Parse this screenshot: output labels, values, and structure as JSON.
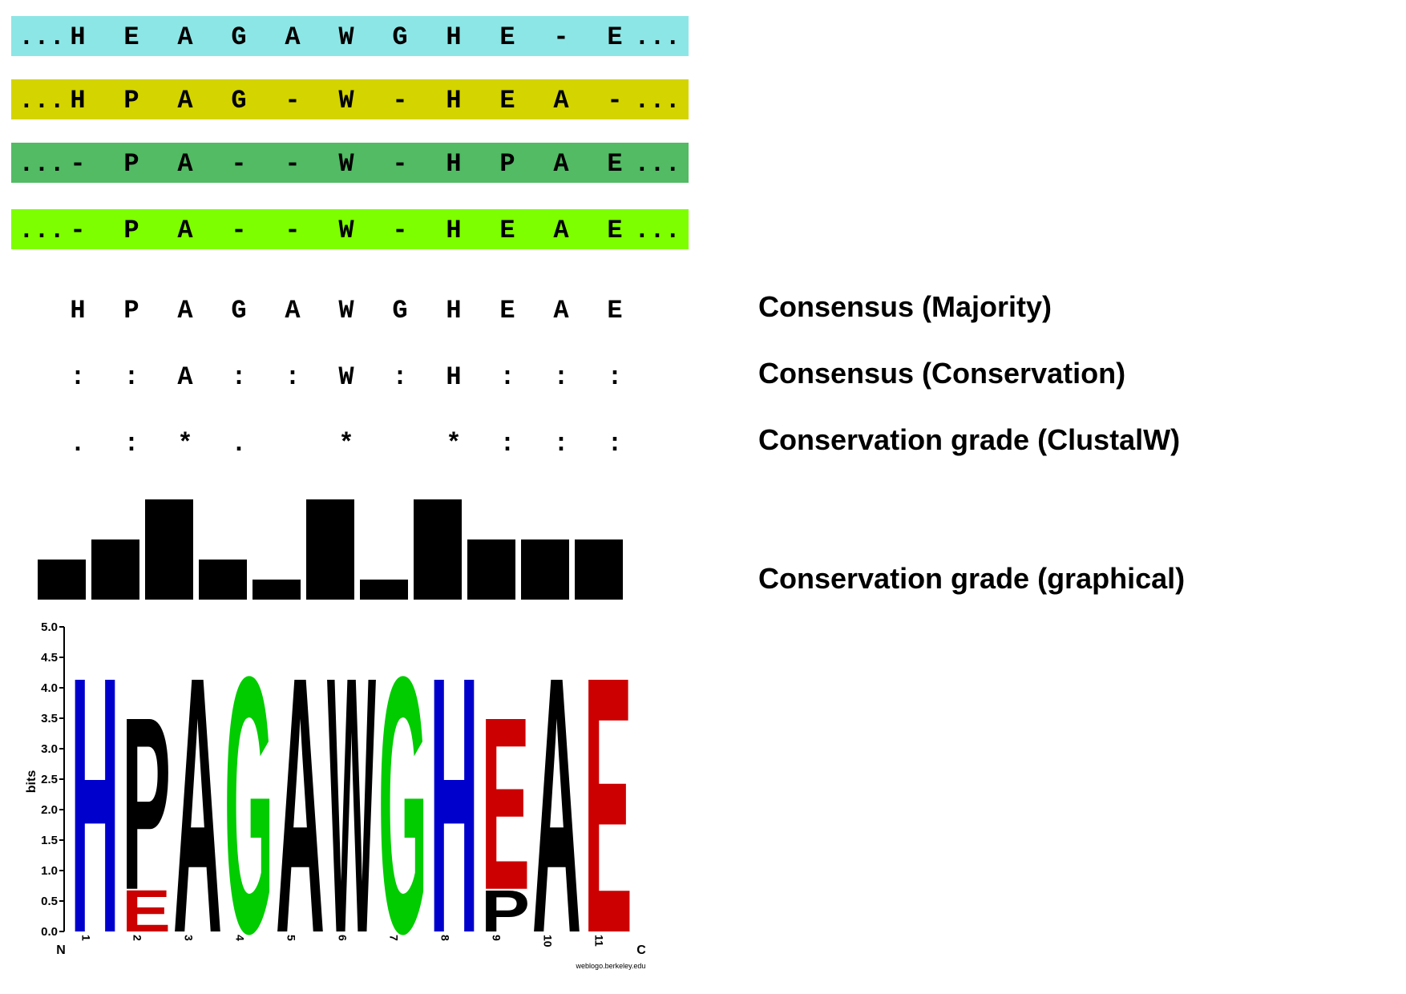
{
  "sequences": [
    {
      "color": "#8de6e6",
      "prefix": "...",
      "suffix": "...",
      "residues": [
        "H",
        "E",
        "A",
        "G",
        "A",
        "W",
        "G",
        "H",
        "E",
        "-",
        "E"
      ]
    },
    {
      "color": "#d4d400",
      "prefix": "...",
      "suffix": "...",
      "residues": [
        "H",
        "P",
        "A",
        "G",
        "-",
        "W",
        "-",
        "H",
        "E",
        "A",
        "-"
      ]
    },
    {
      "color": "#52bb64",
      "prefix": "...",
      "suffix": "...",
      "residues": [
        "-",
        "P",
        "A",
        "-",
        "-",
        "W",
        "-",
        "H",
        "P",
        "A",
        "E"
      ]
    },
    {
      "color": "#7eff00",
      "prefix": "...",
      "suffix": "...",
      "residues": [
        "-",
        "P",
        "A",
        "-",
        "-",
        "W",
        "-",
        "H",
        "E",
        "A",
        "E"
      ]
    }
  ],
  "consensus_majority": {
    "label": "Consensus (Majority)",
    "values": [
      "H",
      "P",
      "A",
      "G",
      "A",
      "W",
      "G",
      "H",
      "E",
      "A",
      "E"
    ]
  },
  "consensus_conservation": {
    "label": "Consensus (Conservation)",
    "values": [
      ":",
      ":",
      "A",
      ":",
      ":",
      "W",
      ":",
      "H",
      ":",
      ":",
      ":"
    ]
  },
  "clustalw_grade": {
    "label": "Conservation grade (ClustalW)",
    "values": [
      ".",
      ":",
      "*",
      ".",
      "",
      "*",
      "",
      "*",
      ":",
      ":",
      ":"
    ]
  },
  "graphical_grade": {
    "label": "Conservation grade (graphical)"
  },
  "chart_data": {
    "type": "bar",
    "categories": [
      "1",
      "2",
      "3",
      "4",
      "5",
      "6",
      "7",
      "8",
      "9",
      "10",
      "11"
    ],
    "values": [
      2,
      3,
      5,
      2,
      1,
      5,
      1,
      5,
      3,
      3,
      3
    ],
    "ylim": [
      0,
      5
    ]
  },
  "logo": {
    "ylabel": "bits",
    "yticks": [
      "0.0",
      "0.5",
      "1.0",
      "1.5",
      "2.0",
      "2.5",
      "3.0",
      "3.5",
      "4.0",
      "4.5",
      "5.0"
    ],
    "ylim": [
      0,
      5
    ],
    "n_label": "N",
    "c_label": "C",
    "credit": "weblogo.berkeley.edu",
    "colors": {
      "H": "#0000cc",
      "P": "#000000",
      "A": "#000000",
      "G": "#00cc00",
      "W": "#000000",
      "E": "#cc0000"
    },
    "columns": [
      {
        "pos": "1",
        "stack": [
          {
            "letter": "H",
            "bits": 4.3
          }
        ]
      },
      {
        "pos": "2",
        "stack": [
          {
            "letter": "E",
            "bits": 0.7
          },
          {
            "letter": "P",
            "bits": 2.9
          }
        ]
      },
      {
        "pos": "3",
        "stack": [
          {
            "letter": "A",
            "bits": 4.3
          }
        ]
      },
      {
        "pos": "4",
        "stack": [
          {
            "letter": "G",
            "bits": 4.3
          }
        ]
      },
      {
        "pos": "5",
        "stack": [
          {
            "letter": "A",
            "bits": 4.3
          }
        ]
      },
      {
        "pos": "6",
        "stack": [
          {
            "letter": "W",
            "bits": 4.3
          }
        ]
      },
      {
        "pos": "7",
        "stack": [
          {
            "letter": "G",
            "bits": 4.3
          }
        ]
      },
      {
        "pos": "8",
        "stack": [
          {
            "letter": "H",
            "bits": 4.3
          }
        ]
      },
      {
        "pos": "9",
        "stack": [
          {
            "letter": "P",
            "bits": 0.7
          },
          {
            "letter": "E",
            "bits": 2.9
          }
        ]
      },
      {
        "pos": "10",
        "stack": [
          {
            "letter": "A",
            "bits": 4.3
          }
        ]
      },
      {
        "pos": "11",
        "stack": [
          {
            "letter": "E",
            "bits": 4.3
          }
        ]
      }
    ]
  }
}
